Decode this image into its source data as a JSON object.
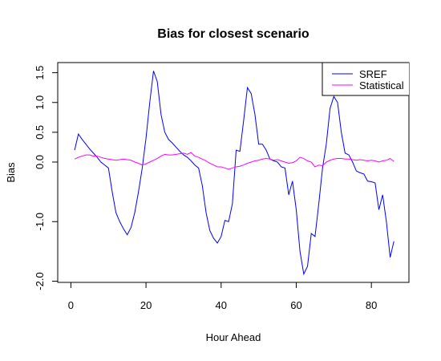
{
  "chart_data": {
    "type": "line",
    "title": "Bias for closest scenario",
    "x_label": "Hour Ahead",
    "y_label": "Bias",
    "x": [
      1,
      2,
      3,
      4,
      5,
      6,
      7,
      8,
      9,
      10,
      11,
      12,
      13,
      14,
      15,
      16,
      17,
      18,
      19,
      20,
      21,
      22,
      23,
      24,
      25,
      26,
      27,
      28,
      29,
      30,
      31,
      32,
      33,
      34,
      35,
      36,
      37,
      38,
      39,
      40,
      41,
      42,
      43,
      44,
      45,
      46,
      47,
      48,
      49,
      50,
      51,
      52,
      53,
      54,
      55,
      56,
      57,
      58,
      59,
      60,
      61,
      62,
      63,
      64,
      65,
      66,
      67,
      68,
      69,
      70,
      71,
      72,
      73,
      74,
      75,
      76,
      77,
      78,
      79,
      80,
      81,
      82,
      83,
      84,
      85,
      86
    ],
    "series": [
      {
        "name": "SREF",
        "color": "#0000ff",
        "values": [
          0.2,
          0.47,
          0.38,
          0.3,
          0.22,
          0.15,
          0.08,
          0.0,
          -0.05,
          -0.1,
          -0.5,
          -0.85,
          -1.0,
          -1.12,
          -1.22,
          -1.1,
          -0.85,
          -0.5,
          -0.1,
          0.4,
          1.0,
          1.53,
          1.35,
          0.8,
          0.5,
          0.38,
          0.32,
          0.25,
          0.18,
          0.12,
          0.08,
          0.02,
          -0.05,
          -0.1,
          -0.4,
          -0.85,
          -1.15,
          -1.28,
          -1.36,
          -1.25,
          -0.98,
          -1.0,
          -0.7,
          0.2,
          0.18,
          0.7,
          1.25,
          1.15,
          0.8,
          0.3,
          0.3,
          0.2,
          0.05,
          0.02,
          0.0,
          -0.08,
          -0.1,
          -0.55,
          -0.32,
          -0.8,
          -1.5,
          -1.88,
          -1.75,
          -1.2,
          -1.25,
          -0.7,
          -0.1,
          0.3,
          0.9,
          1.1,
          1.0,
          0.5,
          0.15,
          0.12,
          0.0,
          -0.15,
          -0.18,
          -0.2,
          -0.32,
          -0.33,
          -0.35,
          -0.8,
          -0.55,
          -1.0,
          -1.6,
          -1.33
        ]
      },
      {
        "name": "Statistical",
        "color": "#ff00ff",
        "values": [
          0.05,
          0.08,
          0.1,
          0.12,
          0.12,
          0.1,
          0.1,
          0.08,
          0.06,
          0.05,
          0.04,
          0.03,
          0.04,
          0.05,
          0.04,
          0.03,
          0.0,
          -0.02,
          -0.05,
          -0.03,
          0.0,
          0.03,
          0.06,
          0.1,
          0.13,
          0.12,
          0.12,
          0.13,
          0.14,
          0.15,
          0.13,
          0.16,
          0.1,
          0.08,
          0.05,
          0.02,
          -0.02,
          -0.05,
          -0.08,
          -0.08,
          -0.1,
          -0.12,
          -0.1,
          -0.08,
          -0.07,
          -0.05,
          -0.02,
          0.0,
          0.02,
          0.03,
          0.05,
          0.06,
          0.05,
          0.03,
          0.04,
          0.02,
          0.0,
          -0.02,
          -0.01,
          0.02,
          0.08,
          0.06,
          0.02,
          0.0,
          -0.08,
          -0.05,
          -0.06,
          0.0,
          0.03,
          0.05,
          0.06,
          0.06,
          0.05,
          0.05,
          0.04,
          0.03,
          0.04,
          0.03,
          0.02,
          0.03,
          0.02,
          0.0,
          0.02,
          0.03,
          0.06,
          0.01
        ]
      }
    ],
    "xlim": [
      -3.5,
      90
    ],
    "ylim": [
      -2.02,
      1.67
    ],
    "xticks": [
      0,
      20,
      40,
      60,
      80
    ],
    "yticks": [
      {
        "value": 1.5,
        "label": "1.5"
      },
      {
        "value": 1,
        "label": "1.0"
      },
      {
        "value": 0.5,
        "label": "0.5"
      },
      {
        "value": 0,
        "label": "0.0"
      },
      {
        "value": -1,
        "label": "-1.0"
      },
      {
        "value": -2,
        "label": "-2.0"
      }
    ],
    "legend": "top-right"
  }
}
